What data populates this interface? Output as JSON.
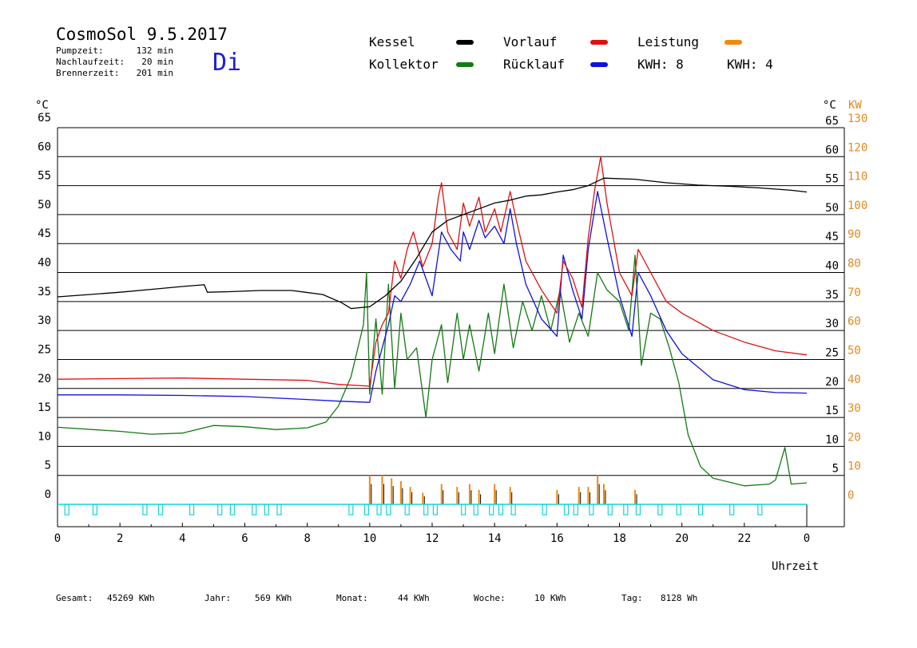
{
  "header": {
    "title": "CosmoSol 9.5.2017",
    "day": "Di",
    "stats": [
      {
        "label": "Pumpzeit:",
        "value": "132 min"
      },
      {
        "label": "Nachlaufzeit:",
        "value": "20 min"
      },
      {
        "label": "Brennerzeit:",
        "value": "201 min"
      }
    ]
  },
  "legend": [
    {
      "label": "Kessel",
      "color": "#000000"
    },
    {
      "label": "Vorlauf",
      "color": "#e01010"
    },
    {
      "label": "Leistung",
      "color": "#f08a10"
    },
    {
      "label": "Kollektor",
      "color": "#137a13"
    },
    {
      "label": "Rücklauf",
      "color": "#1010e0"
    }
  ],
  "kwh": [
    {
      "label": "KWH: 8",
      "color": "#e08a1e"
    },
    {
      "label": "KWH: 4",
      "color": "#7a1e7a"
    }
  ],
  "axes": {
    "left_unit": "°C",
    "right_unit": "°C",
    "right_unit2": "KW",
    "xlabel": "Uhrzeit",
    "x_ticks": [
      "0",
      "2",
      "4",
      "6",
      "8",
      "10",
      "12",
      "14",
      "16",
      "18",
      "20",
      "22",
      "0"
    ],
    "y_ticks_left": [
      "0",
      "5",
      "10",
      "15",
      "20",
      "25",
      "30",
      "35",
      "40",
      "45",
      "50",
      "55",
      "60",
      "65"
    ],
    "y_ticks_right": [
      "",
      "5",
      "10",
      "15",
      "20",
      "25",
      "30",
      "35",
      "40",
      "45",
      "50",
      "55",
      "60",
      "65"
    ],
    "kw_ticks": [
      "0",
      "10",
      "20",
      "30",
      "40",
      "50",
      "60",
      "70",
      "80",
      "90",
      "100",
      "110",
      "120",
      "130"
    ]
  },
  "footer": [
    {
      "label": "Gesamt:",
      "value": "45269 KWh"
    },
    {
      "label": "Jahr:",
      "value": "569 KWh"
    },
    {
      "label": "Monat:",
      "value": "44 KWh"
    },
    {
      "label": "Woche:",
      "value": "10 KWh"
    },
    {
      "label": "Tag:",
      "value": "8128 Wh"
    }
  ],
  "chart_data": {
    "type": "line",
    "xlabel": "Uhrzeit",
    "ylabel": "°C",
    "y2label": "KW",
    "xlim": [
      0,
      24
    ],
    "ylim": [
      0,
      65
    ],
    "y2lim": [
      0,
      130
    ],
    "grid": true,
    "legend_position": "top",
    "series": [
      {
        "name": "Kessel",
        "color": "#000000",
        "points": [
          [
            0,
            35.8
          ],
          [
            1,
            36.2
          ],
          [
            2,
            36.6
          ],
          [
            3,
            37.1
          ],
          [
            4,
            37.6
          ],
          [
            4.7,
            37.9
          ],
          [
            4.8,
            36.6
          ],
          [
            5.5,
            36.7
          ],
          [
            6.5,
            36.9
          ],
          [
            7.5,
            36.9
          ],
          [
            8.5,
            36.2
          ],
          [
            9.1,
            34.8
          ],
          [
            9.4,
            33.8
          ],
          [
            10,
            34.1
          ],
          [
            10.5,
            36
          ],
          [
            11,
            38.5
          ],
          [
            11.5,
            42.5
          ],
          [
            12,
            47
          ],
          [
            12.5,
            49
          ],
          [
            13,
            50
          ],
          [
            13.5,
            51
          ],
          [
            14,
            52
          ],
          [
            14.5,
            52.5
          ],
          [
            15,
            53.2
          ],
          [
            15.5,
            53.4
          ],
          [
            16,
            53.9
          ],
          [
            16.5,
            54.3
          ],
          [
            17,
            55
          ],
          [
            17.5,
            56.3
          ],
          [
            18.5,
            56.1
          ],
          [
            19.5,
            55.5
          ],
          [
            20.5,
            55.1
          ],
          [
            21.5,
            54.9
          ],
          [
            22.5,
            54.6
          ],
          [
            23.5,
            54.2
          ],
          [
            24,
            53.9
          ]
        ]
      },
      {
        "name": "Vorlauf",
        "color": "#e01010",
        "points": [
          [
            0,
            21.6
          ],
          [
            2,
            21.7
          ],
          [
            4,
            21.8
          ],
          [
            6,
            21.6
          ],
          [
            8,
            21.4
          ],
          [
            9,
            20.7
          ],
          [
            10,
            20.4
          ],
          [
            10.2,
            28
          ],
          [
            10.4,
            31
          ],
          [
            10.6,
            33
          ],
          [
            10.8,
            42
          ],
          [
            11,
            39
          ],
          [
            11.2,
            44
          ],
          [
            11.4,
            47
          ],
          [
            11.7,
            41
          ],
          [
            12,
            45
          ],
          [
            12.2,
            53
          ],
          [
            12.3,
            55.5
          ],
          [
            12.5,
            47
          ],
          [
            12.8,
            44
          ],
          [
            13,
            52
          ],
          [
            13.2,
            48
          ],
          [
            13.5,
            53
          ],
          [
            13.7,
            47
          ],
          [
            14,
            51
          ],
          [
            14.2,
            47
          ],
          [
            14.5,
            54
          ],
          [
            14.7,
            49
          ],
          [
            15,
            42
          ],
          [
            15.5,
            37
          ],
          [
            16,
            33
          ],
          [
            16.2,
            42
          ],
          [
            16.5,
            39
          ],
          [
            16.8,
            34
          ],
          [
            17,
            46
          ],
          [
            17.2,
            54
          ],
          [
            17.4,
            60
          ],
          [
            17.6,
            52
          ],
          [
            18,
            40
          ],
          [
            18.4,
            36
          ],
          [
            18.6,
            44
          ],
          [
            19,
            40
          ],
          [
            19.5,
            35
          ],
          [
            20,
            33
          ],
          [
            21,
            30
          ],
          [
            22,
            28
          ],
          [
            23,
            26.5
          ],
          [
            24,
            25.8
          ]
        ]
      },
      {
        "name": "Rücklauf",
        "color": "#1010e0",
        "points": [
          [
            0,
            18.9
          ],
          [
            2,
            18.9
          ],
          [
            4,
            18.8
          ],
          [
            6,
            18.6
          ],
          [
            8,
            18.1
          ],
          [
            9,
            17.8
          ],
          [
            10,
            17.6
          ],
          [
            10.2,
            23
          ],
          [
            10.4,
            27
          ],
          [
            10.6,
            31
          ],
          [
            10.8,
            36
          ],
          [
            11,
            35
          ],
          [
            11.3,
            38
          ],
          [
            11.6,
            42
          ],
          [
            12,
            36
          ],
          [
            12.3,
            47
          ],
          [
            12.6,
            44
          ],
          [
            12.9,
            42
          ],
          [
            13,
            47
          ],
          [
            13.2,
            44
          ],
          [
            13.5,
            49
          ],
          [
            13.7,
            46
          ],
          [
            14,
            48
          ],
          [
            14.3,
            45
          ],
          [
            14.5,
            51
          ],
          [
            14.7,
            45
          ],
          [
            15,
            38
          ],
          [
            15.5,
            32
          ],
          [
            16,
            29
          ],
          [
            16.2,
            43
          ],
          [
            16.5,
            37
          ],
          [
            16.8,
            32
          ],
          [
            17,
            44
          ],
          [
            17.3,
            54
          ],
          [
            17.6,
            46
          ],
          [
            18,
            36
          ],
          [
            18.4,
            29
          ],
          [
            18.6,
            40
          ],
          [
            19,
            36
          ],
          [
            19.5,
            30
          ],
          [
            20,
            26
          ],
          [
            21,
            21.5
          ],
          [
            22,
            19.8
          ],
          [
            23,
            19.3
          ],
          [
            24,
            19.2
          ]
        ]
      },
      {
        "name": "Kollektor",
        "color": "#137a13",
        "points": [
          [
            0,
            13.3
          ],
          [
            2,
            12.6
          ],
          [
            3,
            12.1
          ],
          [
            4,
            12.3
          ],
          [
            5,
            13.6
          ],
          [
            6,
            13.4
          ],
          [
            7,
            12.9
          ],
          [
            8,
            13.2
          ],
          [
            8.6,
            14.2
          ],
          [
            9,
            17
          ],
          [
            9.4,
            22
          ],
          [
            9.8,
            31
          ],
          [
            9.9,
            40
          ],
          [
            10,
            19
          ],
          [
            10.2,
            32
          ],
          [
            10.4,
            19
          ],
          [
            10.6,
            38
          ],
          [
            10.8,
            20
          ],
          [
            11,
            33
          ],
          [
            11.2,
            25
          ],
          [
            11.5,
            27
          ],
          [
            11.8,
            15
          ],
          [
            12,
            25
          ],
          [
            12.3,
            31
          ],
          [
            12.5,
            21
          ],
          [
            12.8,
            33
          ],
          [
            13,
            25
          ],
          [
            13.2,
            31
          ],
          [
            13.5,
            23
          ],
          [
            13.8,
            33
          ],
          [
            14,
            26
          ],
          [
            14.3,
            38
          ],
          [
            14.6,
            27
          ],
          [
            14.9,
            35
          ],
          [
            15.2,
            30
          ],
          [
            15.5,
            36
          ],
          [
            15.8,
            30
          ],
          [
            16.1,
            37
          ],
          [
            16.4,
            28
          ],
          [
            16.7,
            33
          ],
          [
            17,
            29
          ],
          [
            17.3,
            40
          ],
          [
            17.6,
            37
          ],
          [
            18,
            35
          ],
          [
            18.3,
            30
          ],
          [
            18.5,
            43
          ],
          [
            18.7,
            24
          ],
          [
            19,
            33
          ],
          [
            19.3,
            32
          ],
          [
            19.6,
            27
          ],
          [
            19.9,
            21
          ],
          [
            20.2,
            12
          ],
          [
            20.6,
            6.5
          ],
          [
            21,
            4.5
          ],
          [
            22,
            3.2
          ],
          [
            22.8,
            3.5
          ],
          [
            23,
            4.2
          ],
          [
            23.3,
            9.8
          ],
          [
            23.5,
            3.5
          ],
          [
            24,
            3.7
          ]
        ]
      }
    ],
    "power_bars": [
      {
        "x": 10.0,
        "value": 10
      },
      {
        "x": 10.4,
        "value": 10
      },
      {
        "x": 10.7,
        "value": 9
      },
      {
        "x": 11.0,
        "value": 8
      },
      {
        "x": 11.3,
        "value": 6
      },
      {
        "x": 11.7,
        "value": 4
      },
      {
        "x": 12.3,
        "value": 7
      },
      {
        "x": 12.8,
        "value": 6
      },
      {
        "x": 13.2,
        "value": 7
      },
      {
        "x": 13.5,
        "value": 5
      },
      {
        "x": 14.0,
        "value": 7
      },
      {
        "x": 14.5,
        "value": 6
      },
      {
        "x": 16.0,
        "value": 5
      },
      {
        "x": 16.7,
        "value": 6
      },
      {
        "x": 17.0,
        "value": 6
      },
      {
        "x": 17.3,
        "value": 10
      },
      {
        "x": 17.5,
        "value": 7
      },
      {
        "x": 18.5,
        "value": 5
      }
    ],
    "pump_marks": [
      0.3,
      1.2,
      2.8,
      3.3,
      4.3,
      5.2,
      5.6,
      6.3,
      6.7,
      7.1,
      9.4,
      9.9,
      10.3,
      10.6,
      11.2,
      11.8,
      12.1,
      13.0,
      13.4,
      13.9,
      14.2,
      14.6,
      15.6,
      16.3,
      16.6,
      17.1,
      17.7,
      18.2,
      18.6,
      19.3,
      19.9,
      20.6,
      21.6,
      22.5
    ]
  }
}
